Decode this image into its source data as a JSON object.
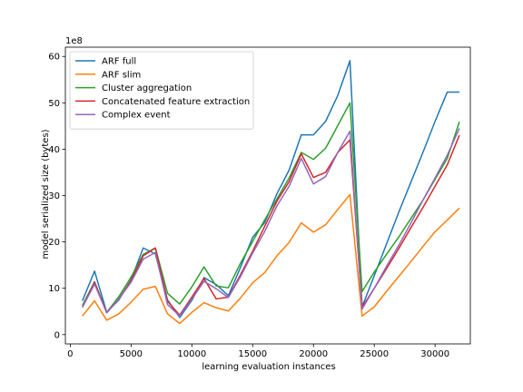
{
  "chart_data": {
    "type": "line",
    "xlabel": "learning evaluation instances",
    "ylabel": "model serialized size (bytes)",
    "y_scale_label": "1e8",
    "xlim": [
      -400,
      32900
    ],
    "ylim": [
      -2,
      62
    ],
    "xticks": [
      0,
      5000,
      10000,
      15000,
      20000,
      25000,
      30000
    ],
    "yticks": [
      0,
      10,
      20,
      30,
      40,
      50,
      60
    ],
    "legend_position": "top-left",
    "x": [
      1000,
      2000,
      3000,
      4000,
      5000,
      6000,
      7000,
      8000,
      9000,
      10000,
      11000,
      12000,
      13000,
      14000,
      15000,
      16000,
      17000,
      18000,
      19000,
      20000,
      21000,
      22000,
      23000,
      24000,
      25000,
      26000,
      27000,
      28000,
      29000,
      30000,
      31000,
      32000
    ],
    "series": [
      {
        "name": "ARF full",
        "color": "#1f77b4",
        "values": [
          7.3,
          13.7,
          4.8,
          7.5,
          11.8,
          18.7,
          17.4,
          7.5,
          3.7,
          7.4,
          12.3,
          10.8,
          8.4,
          14.5,
          21.0,
          24.2,
          30.4,
          35.5,
          43.1,
          43.1,
          46.0,
          51.6,
          59.1,
          6.0,
          12.7,
          19.5,
          26.3,
          32.8,
          39.3,
          46.0,
          52.3,
          52.3
        ]
      },
      {
        "name": "ARF slim",
        "color": "#ff7f0e",
        "values": [
          4.0,
          7.3,
          3.1,
          4.5,
          7.0,
          9.8,
          10.4,
          4.5,
          2.4,
          4.8,
          6.9,
          5.8,
          5.1,
          7.9,
          11.2,
          13.4,
          17.0,
          19.9,
          24.1,
          22.1,
          23.7,
          27.0,
          30.2,
          4.0,
          6.0,
          9.3,
          12.5,
          15.7,
          19.0,
          22.2,
          24.7,
          27.3
        ]
      },
      {
        "name": "Cluster aggregation",
        "color": "#2ca02c",
        "values": [
          6.3,
          11.4,
          4.8,
          8.2,
          12.4,
          17.3,
          18.7,
          8.9,
          6.6,
          10.3,
          14.6,
          10.5,
          10.1,
          15.4,
          20.1,
          24.8,
          29.3,
          33.8,
          39.3,
          37.8,
          40.2,
          45.1,
          50.0,
          9.3,
          13.5,
          17.3,
          21.0,
          25.0,
          29.0,
          33.5,
          38.0,
          45.9
        ]
      },
      {
        "name": "Concatenated feature extraction",
        "color": "#d62728",
        "values": [
          5.9,
          11.3,
          4.7,
          7.7,
          11.6,
          17.0,
          18.7,
          7.2,
          4.2,
          8.1,
          12.1,
          7.7,
          8.1,
          12.9,
          18.0,
          23.4,
          28.8,
          33.0,
          39.0,
          33.9,
          35.0,
          39.3,
          42.0,
          5.9,
          10.0,
          14.2,
          18.5,
          23.0,
          27.4,
          32.0,
          36.6,
          43.0
        ]
      },
      {
        "name": "Complex event",
        "color": "#9467bd",
        "values": [
          5.9,
          10.9,
          4.7,
          7.7,
          11.3,
          16.3,
          17.7,
          6.5,
          4.0,
          7.7,
          11.5,
          9.9,
          8.0,
          12.5,
          17.6,
          22.3,
          27.8,
          32.0,
          38.0,
          32.5,
          34.1,
          39.3,
          43.9,
          5.5,
          10.0,
          14.7,
          19.2,
          24.0,
          29.0,
          33.8,
          38.7,
          44.5
        ]
      }
    ]
  }
}
